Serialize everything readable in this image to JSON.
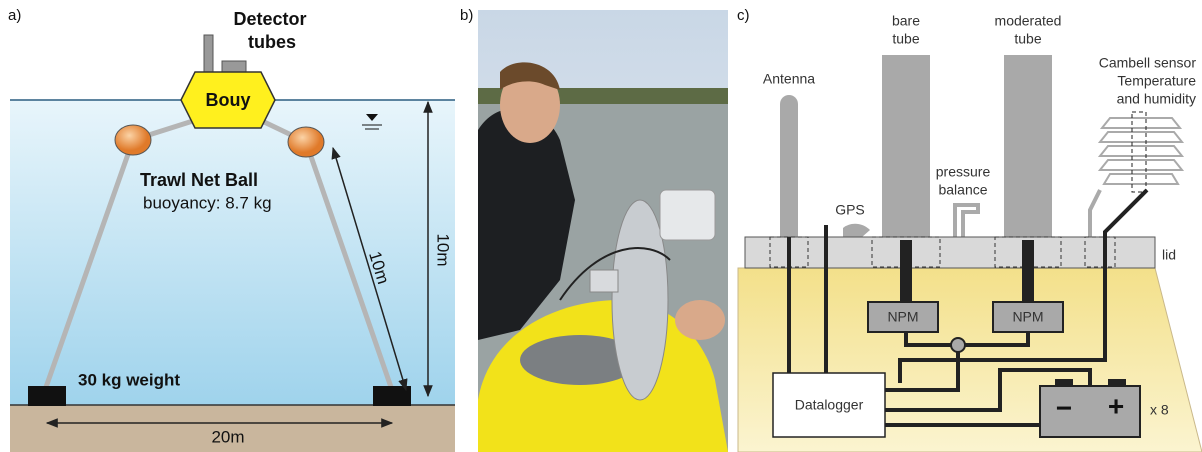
{
  "panels": {
    "a": {
      "label": "a)",
      "detector": [
        "Detector",
        "tubes"
      ],
      "buoy": "Bouy",
      "ball": "Trawl Net Ball",
      "buoyancy": "buoyancy: 8.7 kg",
      "rope_length": "10m",
      "depth": "10m",
      "weight": "30 kg weight",
      "spacing": "20m"
    },
    "b": {
      "label": "b)"
    },
    "c": {
      "label": "c)",
      "antenna": "Antenna",
      "bare_tube": [
        "bare",
        "tube"
      ],
      "moderated_tube": [
        "moderated",
        "tube"
      ],
      "sensor": [
        "Cambell sensor",
        "Temperature",
        "and humidity"
      ],
      "pressure_balance": [
        "pressure",
        "balance"
      ],
      "gps": "GPS",
      "lid": "lid",
      "npm": [
        "NPM",
        "NPM"
      ],
      "datalogger": "Datalogger",
      "battery_minus": "−",
      "battery_plus": "+",
      "battery_count": "x 8"
    }
  }
}
